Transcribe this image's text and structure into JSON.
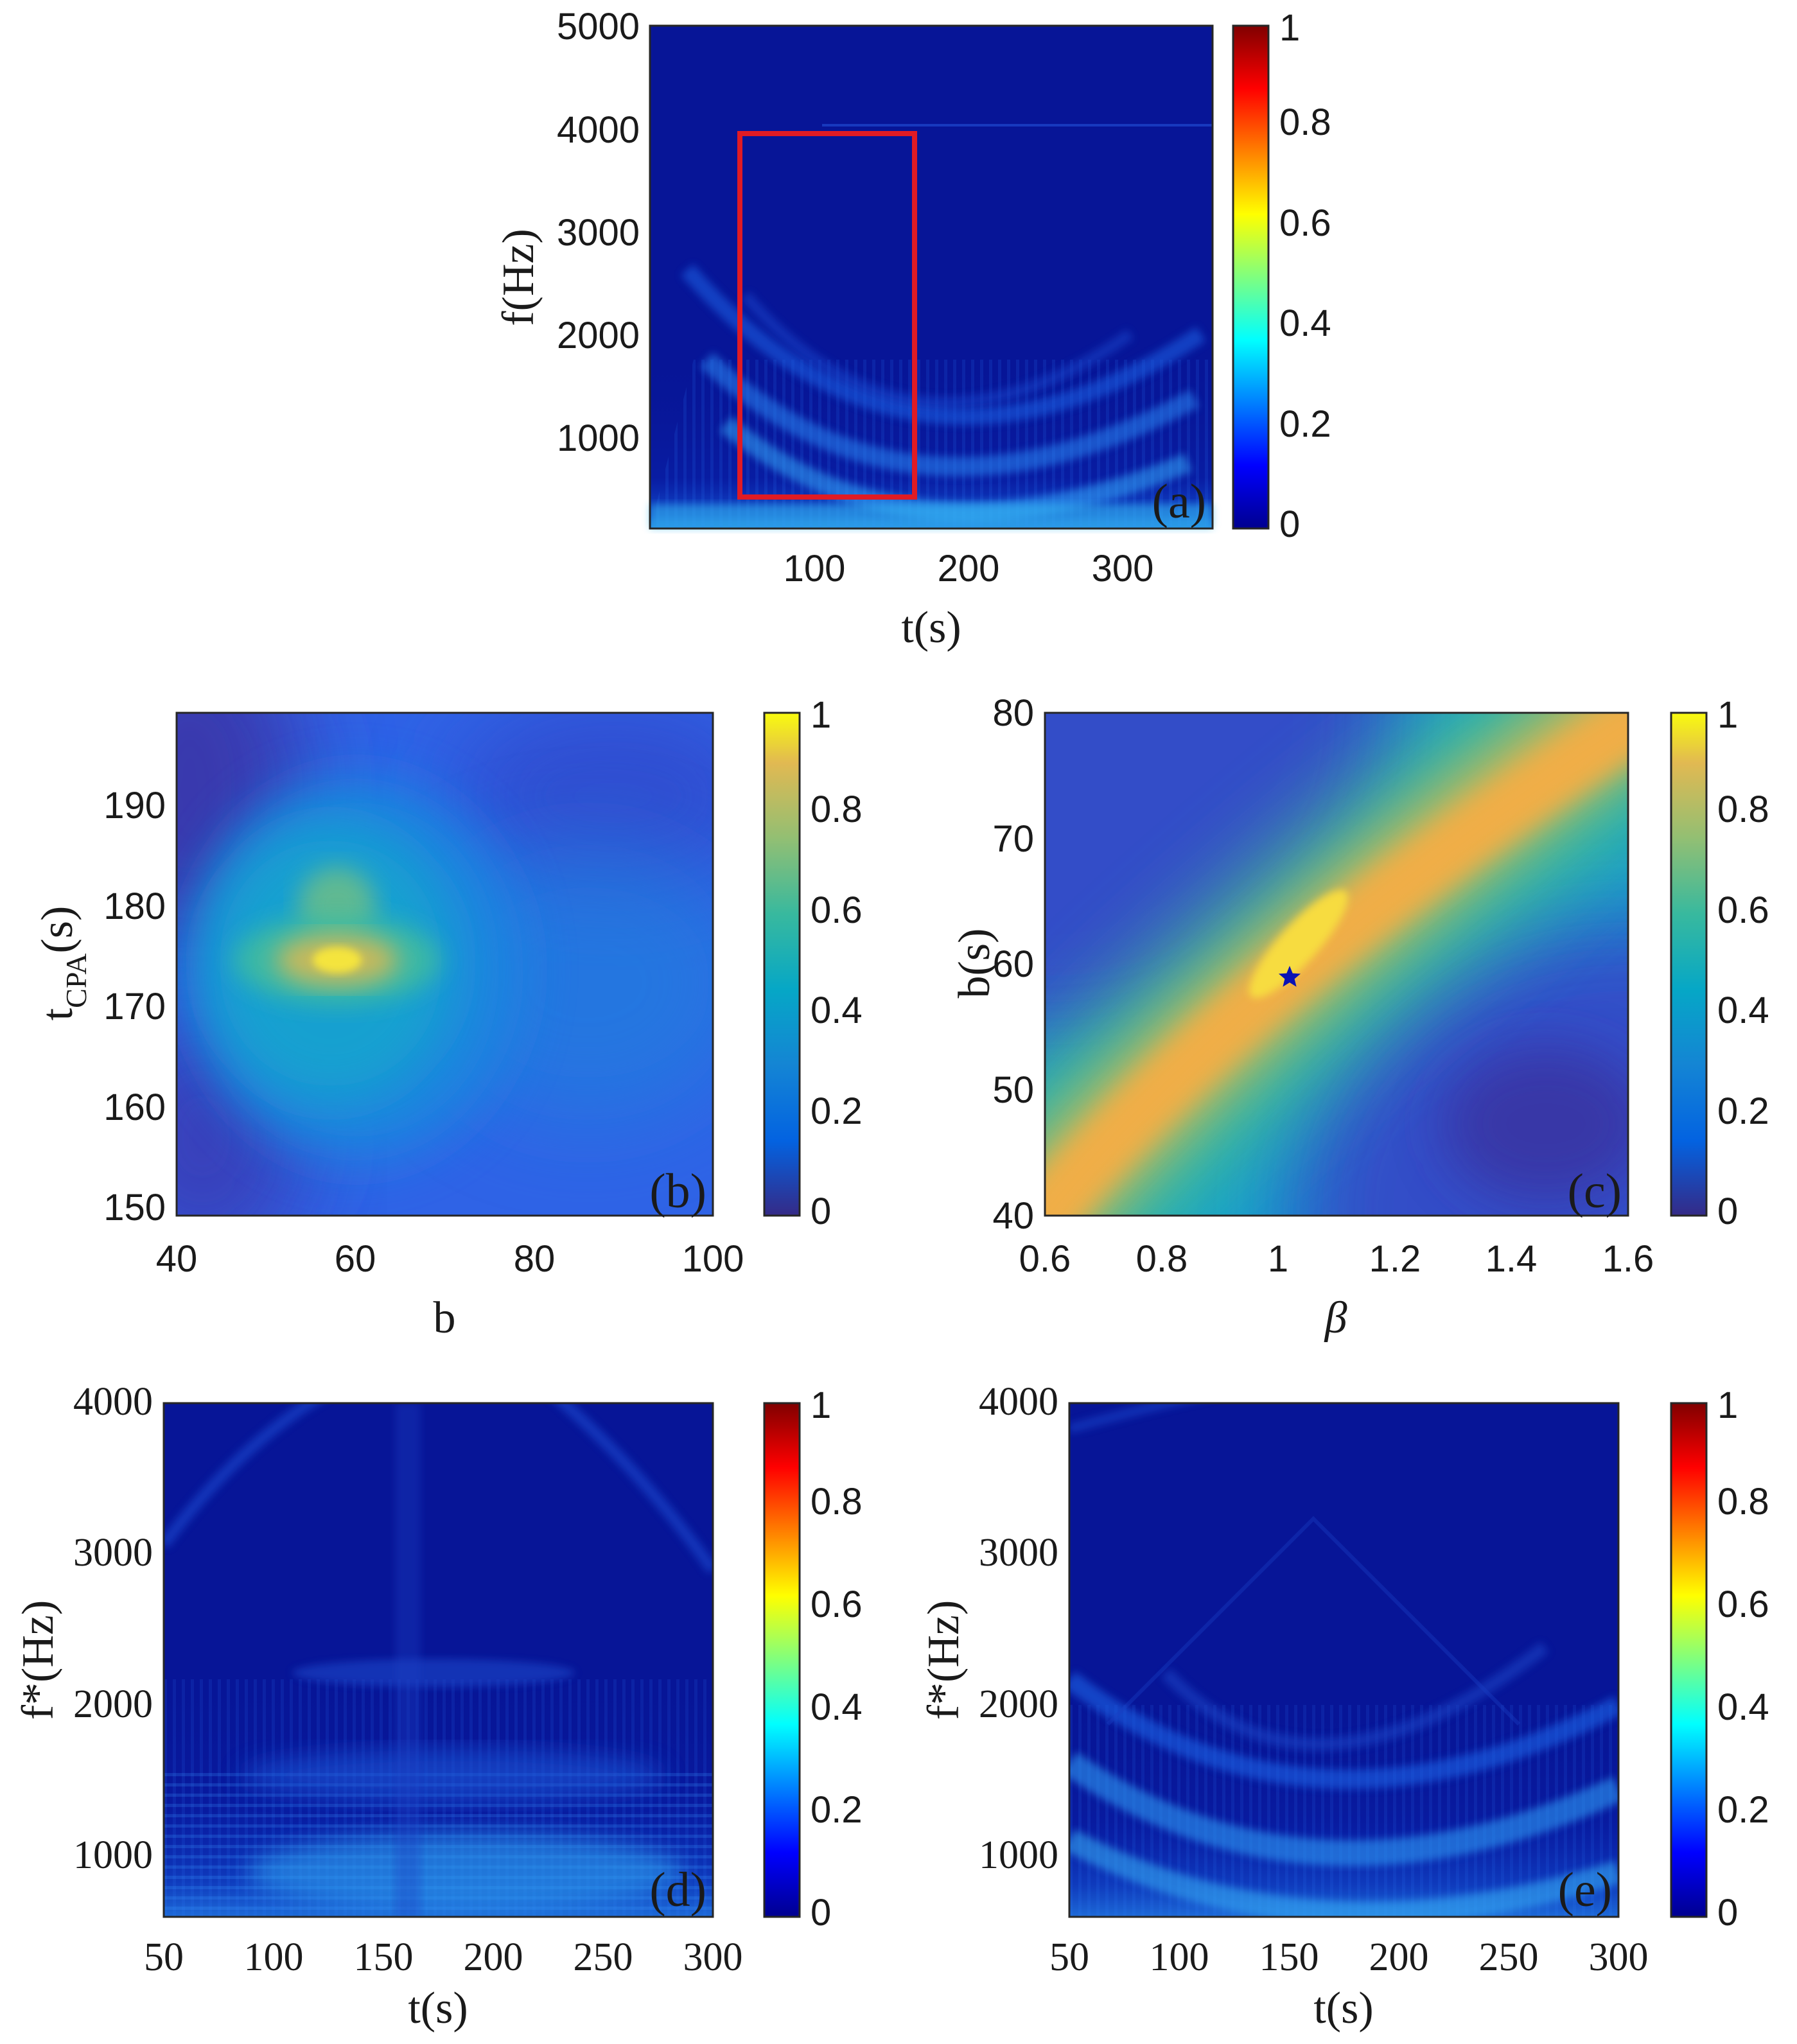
{
  "chart_data": [
    {
      "id": "a",
      "type": "heatmap",
      "panel_label": "(a)",
      "colormap": "jet",
      "xlabel": "t(s)",
      "ylabel": "f(Hz)",
      "xlim": [
        0,
        365
      ],
      "ylim": [
        100,
        5000
      ],
      "xticks": [
        "100",
        "200",
        "300"
      ],
      "yticks": [
        "1000",
        "2000",
        "3000",
        "4000",
        "5000"
      ],
      "colorbar": {
        "range": [
          0,
          1
        ],
        "ticks": [
          "0",
          "0.2",
          "0.4",
          "0.6",
          "0.8",
          "1"
        ]
      },
      "highlight_box": {
        "t_range": [
          55,
          168
        ],
        "f_range": [
          350,
          3950
        ],
        "color": "#e01b24"
      },
      "features": [
        "V-shaped interference striations with vertex near t = 170 s",
        "energy concentrated below 1000 Hz"
      ]
    },
    {
      "id": "b",
      "type": "heatmap",
      "panel_label": "(b)",
      "colormap": "parula",
      "xlabel": "b",
      "ylabel": "t",
      "ylabel_sub": "CPA",
      "ylabel_suffix": "(s)",
      "xlim": [
        40,
        100
      ],
      "ylim": [
        150,
        200
      ],
      "xticks": [
        "40",
        "60",
        "80",
        "100"
      ],
      "yticks": [
        "150",
        "160",
        "170",
        "180",
        "190"
      ],
      "colorbar": {
        "range": [
          0,
          1
        ],
        "ticks": [
          "0",
          "0.2",
          "0.4",
          "0.6",
          "0.8",
          "1"
        ]
      },
      "peak": {
        "b": 58,
        "t_cpa": 175,
        "value": 1.0
      }
    },
    {
      "id": "c",
      "type": "heatmap",
      "panel_label": "(c)",
      "colormap": "parula",
      "xlabel": "β",
      "ylabel": "b(s)",
      "xlim": [
        0.6,
        1.6
      ],
      "ylim": [
        40,
        80
      ],
      "xticks": [
        "0.6",
        "0.8",
        "1",
        "1.2",
        "1.4",
        "1.6"
      ],
      "yticks": [
        "40",
        "50",
        "60",
        "70",
        "80"
      ],
      "colorbar": {
        "range": [
          0,
          1
        ],
        "ticks": [
          "0",
          "0.2",
          "0.4",
          "0.6",
          "0.8",
          "1"
        ]
      },
      "ridge": {
        "from": [
          0.6,
          40
        ],
        "to": [
          1.6,
          82
        ]
      },
      "marker": {
        "beta": 1.02,
        "b": 59,
        "symbol": "star",
        "color": "#0b12b5"
      }
    },
    {
      "id": "d",
      "type": "heatmap",
      "panel_label": "(d)",
      "colormap": "jet",
      "xlabel": "t(s)",
      "ylabel": "f*(Hz)",
      "xlim": [
        50,
        300
      ],
      "ylim": [
        600,
        4000
      ],
      "xticks": [
        "50",
        "100",
        "150",
        "200",
        "250",
        "300"
      ],
      "yticks": [
        "1000",
        "2000",
        "3000",
        "4000"
      ],
      "colorbar": {
        "range": [
          0,
          1
        ],
        "ticks": [
          "0",
          "0.2",
          "0.4",
          "0.6",
          "0.8",
          "1"
        ]
      },
      "features": [
        "horizontal striations after warping"
      ]
    },
    {
      "id": "e",
      "type": "heatmap",
      "panel_label": "(e)",
      "colormap": "jet",
      "xlabel": "t(s)",
      "ylabel": "f*(Hz)",
      "xlim": [
        50,
        300
      ],
      "ylim": [
        600,
        4000
      ],
      "xticks": [
        "50",
        "100",
        "150",
        "200",
        "250",
        "300"
      ],
      "yticks": [
        "1000",
        "2000",
        "3000",
        "4000"
      ],
      "colorbar": {
        "range": [
          0,
          1
        ],
        "ticks": [
          "0",
          "0.2",
          "0.4",
          "0.6",
          "0.8",
          "1"
        ]
      },
      "features": [
        "V-shaped striations with vertex near t = 170 s"
      ]
    }
  ]
}
